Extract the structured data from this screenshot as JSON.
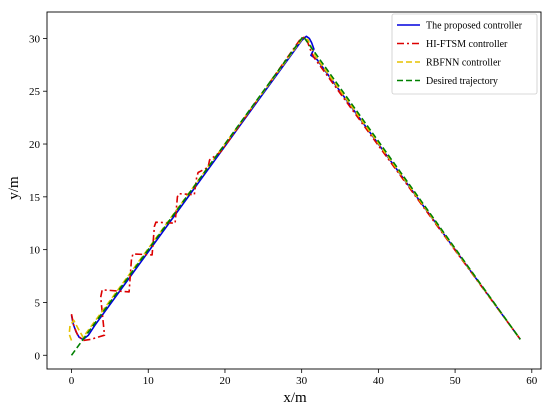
{
  "chart_data": {
    "type": "line",
    "xlabel": "x/m",
    "ylabel": "y/m",
    "xlim": [
      -3.2,
      61.2
    ],
    "ylim": [
      -1.3,
      32.5
    ],
    "xticks": [
      0,
      10,
      20,
      30,
      40,
      50,
      60
    ],
    "yticks": [
      0,
      5,
      10,
      15,
      20,
      25,
      30
    ],
    "grid": false,
    "legend_position": "top-right",
    "series": [
      {
        "name": "The proposed controller",
        "color": "#0000dd",
        "style": "solid",
        "x": [
          0.0,
          0.2,
          0.6,
          1.0,
          1.5,
          2.2,
          3.0,
          30.0,
          30.6,
          31.0,
          31.3,
          31.6,
          31.2,
          32.0,
          58.5
        ],
        "y": [
          3.8,
          3.0,
          2.2,
          1.7,
          1.5,
          1.9,
          2.8,
          29.8,
          30.2,
          30.0,
          29.6,
          29.0,
          28.4,
          28.0,
          1.5
        ]
      },
      {
        "name": "HI-FTSM controller",
        "color": "#dd0000",
        "style": "dashdot",
        "x": [
          0.0,
          0.3,
          0.8,
          1.5,
          2.5,
          4.3,
          3.8,
          4.0,
          7.5,
          7.8,
          8.0,
          10.5,
          10.8,
          11.0,
          13.5,
          13.8,
          14.0,
          16.0,
          16.3,
          16.5,
          17.8,
          18.0,
          19.5,
          29.8,
          30.3,
          30.8,
          31.2,
          31.6,
          58.5
        ],
        "y": [
          3.9,
          2.8,
          1.9,
          1.4,
          1.5,
          1.9,
          5.5,
          6.2,
          6.0,
          9.0,
          9.6,
          9.5,
          12.2,
          12.6,
          12.5,
          15.0,
          15.3,
          15.2,
          16.8,
          17.3,
          17.8,
          18.5,
          19.3,
          29.9,
          30.1,
          29.6,
          28.8,
          28.2,
          1.5
        ]
      },
      {
        "name": "RBFNN controller",
        "color": "#e6c200",
        "style": "dashed",
        "x": [
          0.0,
          -0.3,
          -0.2,
          0.3,
          0.8,
          1.5,
          30.0,
          30.8,
          31.3,
          31.8,
          58.5
        ],
        "y": [
          1.4,
          2.0,
          2.8,
          3.3,
          2.6,
          1.7,
          29.9,
          29.9,
          29.1,
          28.3,
          1.5
        ]
      },
      {
        "name": "Desired trajectory",
        "color": "#008000",
        "style": "dashed",
        "x": [
          0.0,
          30.2,
          58.5
        ],
        "y": [
          0.0,
          30.2,
          1.5
        ]
      }
    ]
  }
}
